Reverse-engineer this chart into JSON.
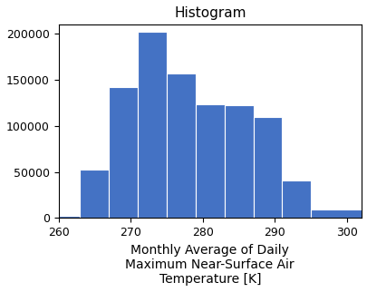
{
  "title": "Histogram",
  "xlabel": "Monthly Average of Daily\nMaximum Near-Surface Air\nTemperature [K]",
  "ylabel": "",
  "bar_color": "#4472c4",
  "bin_edges": [
    260,
    263,
    267,
    271,
    275,
    279,
    283,
    287,
    291,
    295,
    302
  ],
  "bar_heights": [
    2000,
    53000,
    142000,
    202000,
    157000,
    124000,
    123000,
    110000,
    41000,
    9000
  ],
  "xlim": [
    260,
    302
  ],
  "ylim": [
    0,
    210000
  ],
  "xticks": [
    260,
    270,
    280,
    290,
    300
  ],
  "yticks": [
    0,
    50000,
    100000,
    150000,
    200000
  ],
  "title_fontsize": 11,
  "xlabel_fontsize": 10,
  "tick_fontsize": 9,
  "figsize": [
    4.06,
    3.22
  ],
  "dpi": 100
}
